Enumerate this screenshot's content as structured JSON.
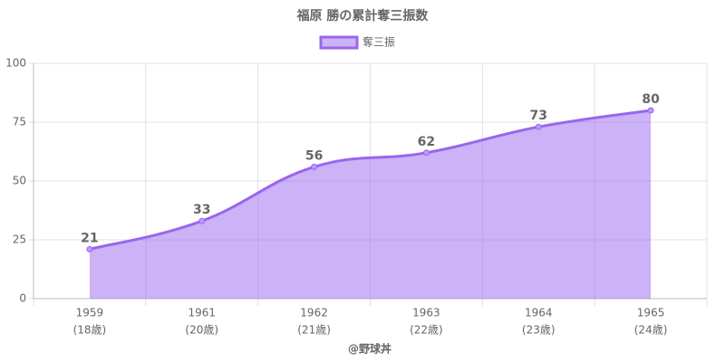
{
  "chart_data": {
    "type": "area",
    "title": "福原 勝の累計奪三振数",
    "categories": [
      [
        "1959",
        "(18歳)"
      ],
      [
        "1961",
        "(20歳)"
      ],
      [
        "1962",
        "(21歳)"
      ],
      [
        "1963",
        "(22歳)"
      ],
      [
        "1964",
        "(23歳)"
      ],
      [
        "1965",
        "(24歳)"
      ]
    ],
    "series": [
      {
        "name": "奪三振",
        "color": "#9966ee",
        "values": [
          21,
          33,
          56,
          62,
          73,
          80
        ]
      }
    ],
    "x_label": "@野球丼",
    "ylim": [
      0,
      100
    ],
    "yticks": [
      0,
      25,
      50,
      75,
      100
    ],
    "grid": true,
    "legend": "top"
  }
}
